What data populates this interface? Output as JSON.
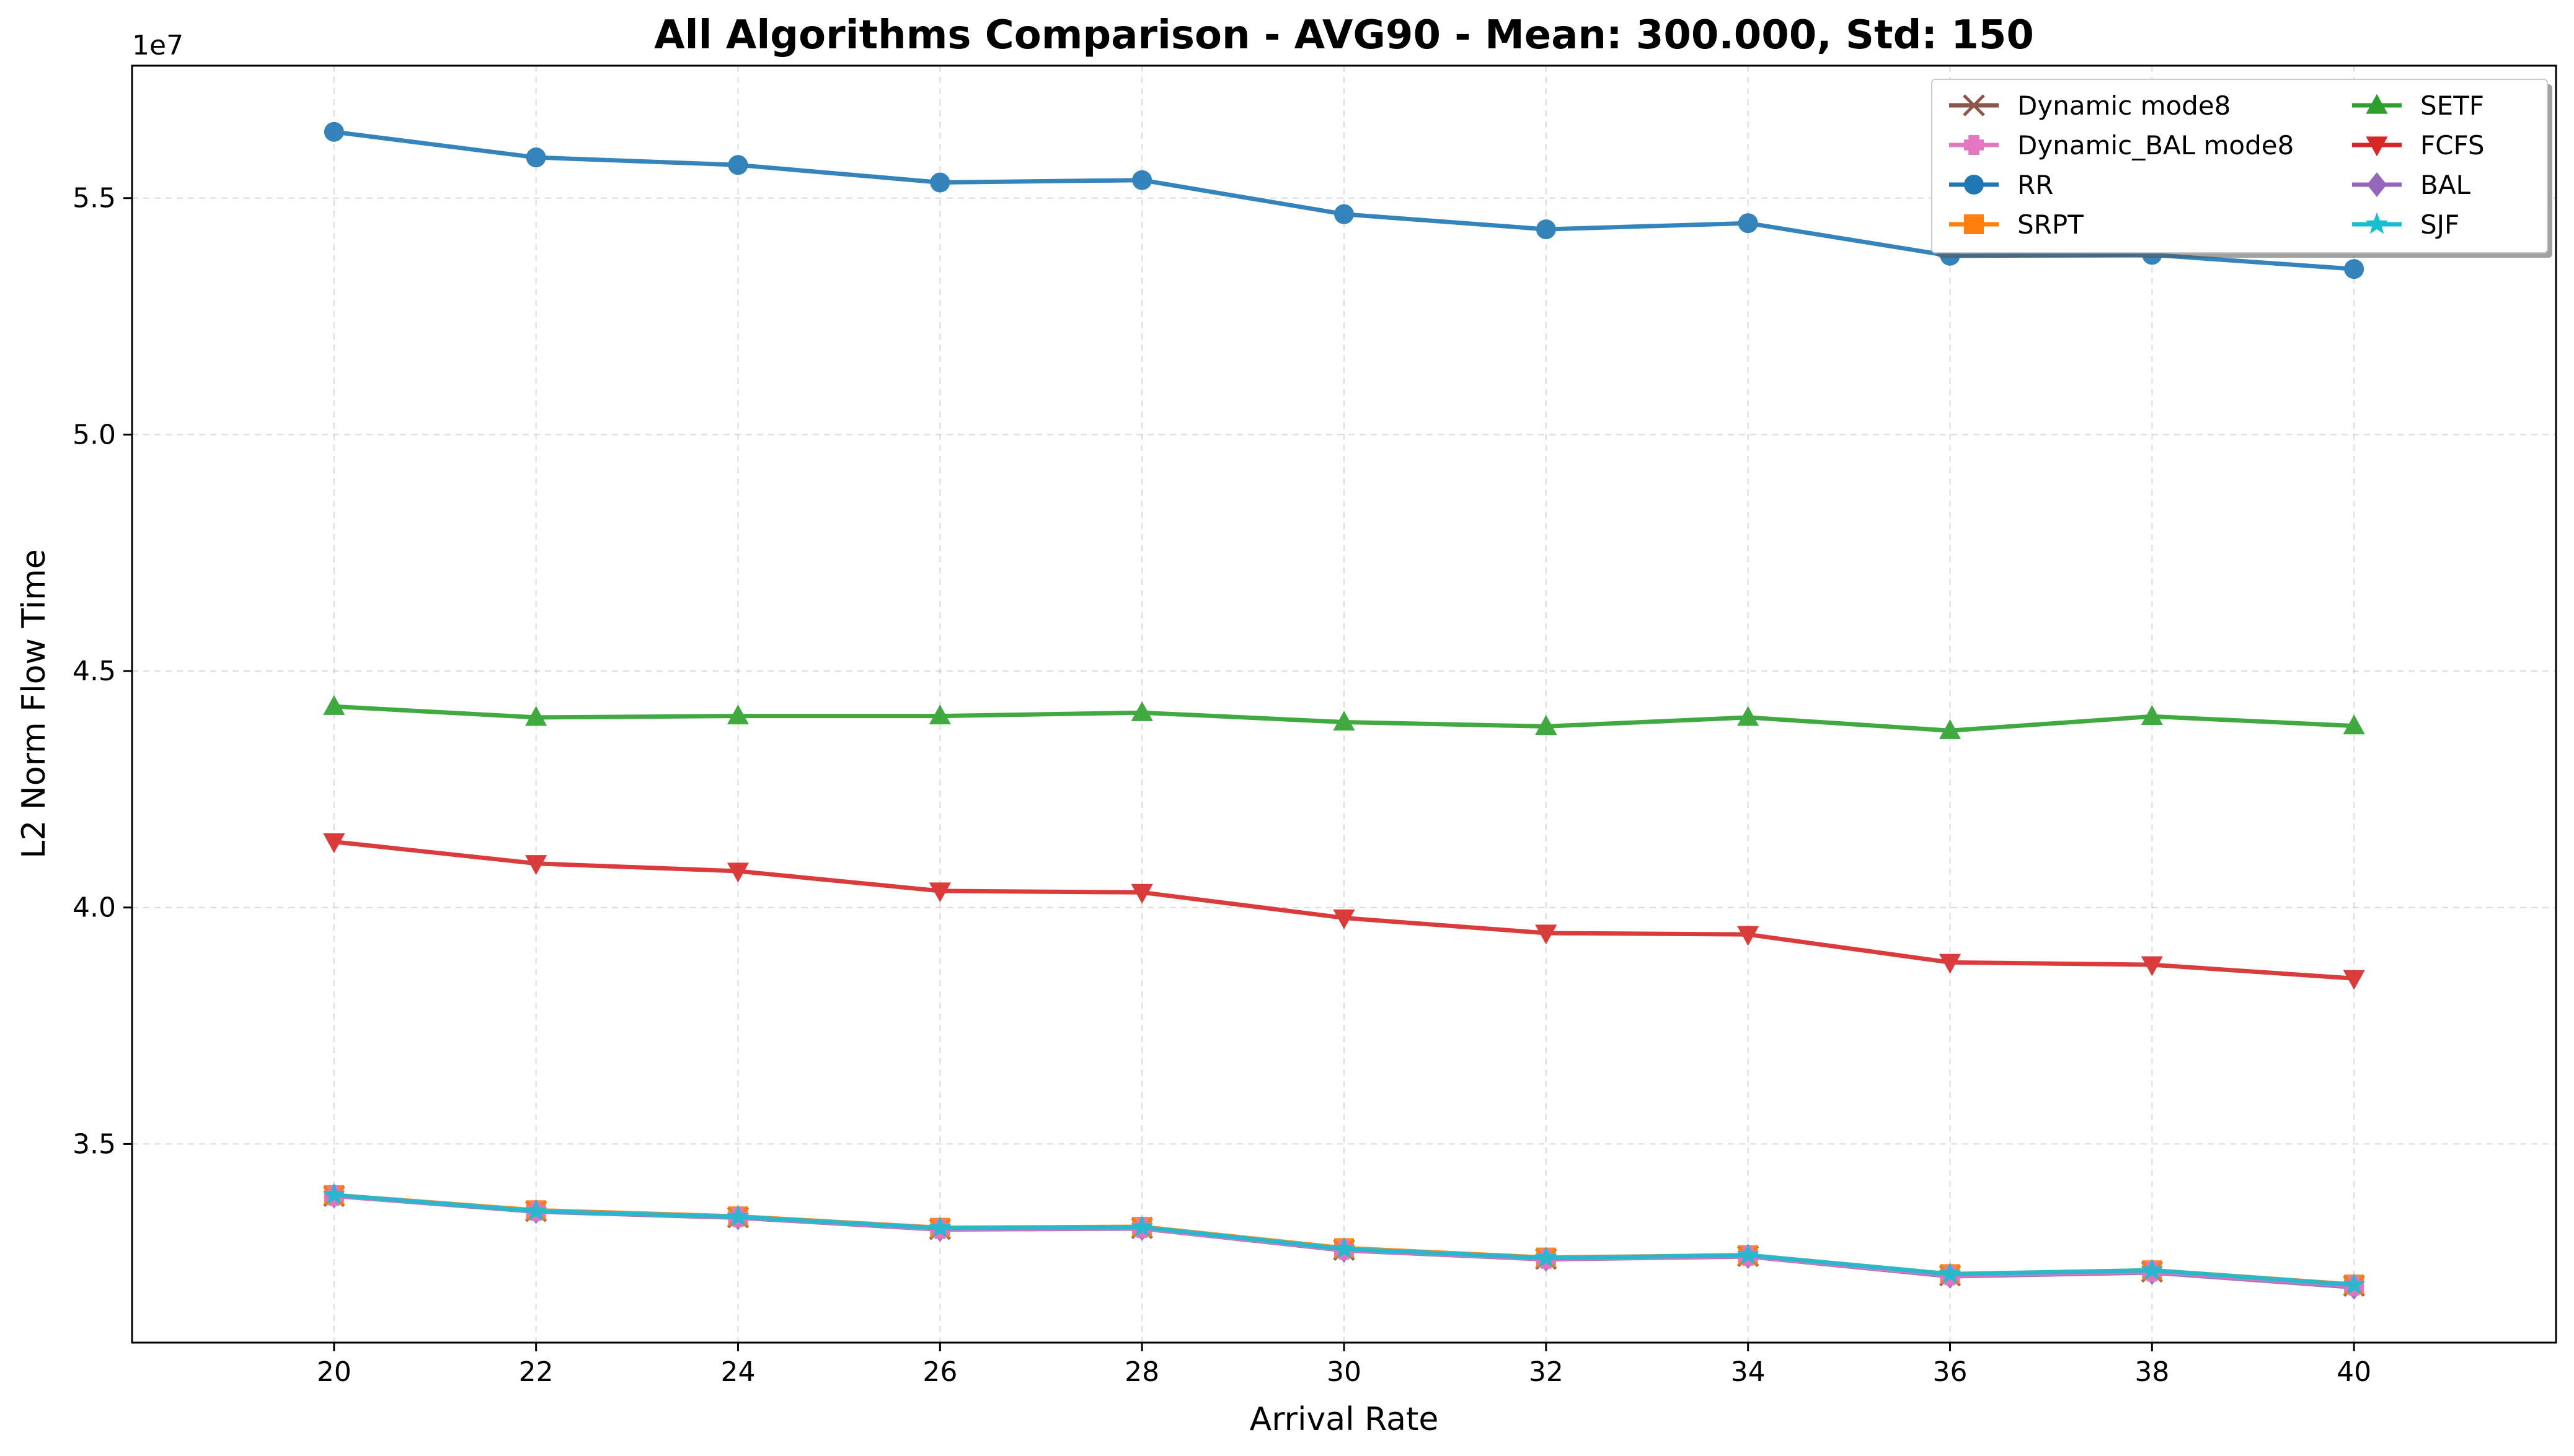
{
  "chart_data": {
    "type": "line",
    "title": "All Algorithms Comparison - AVG90 - Mean: 300.000, Std: 150",
    "xlabel": "Arrival Rate",
    "ylabel": "L2 Norm Flow Time",
    "y_scale_label": "1e7",
    "x": [
      20,
      22,
      24,
      26,
      28,
      30,
      32,
      34,
      36,
      38,
      40
    ],
    "x_ticks": [
      "20",
      "22",
      "24",
      "26",
      "28",
      "30",
      "32",
      "34",
      "36",
      "38",
      "40"
    ],
    "y_ticks": [
      "3.5",
      "4.0",
      "4.5",
      "5.0",
      "5.5"
    ],
    "y_tick_values": [
      3.5,
      4.0,
      4.5,
      5.0,
      5.5
    ],
    "xlim": [
      18,
      42
    ],
    "ylim": [
      3.08,
      5.78
    ],
    "grid": true,
    "legend_position": "top-right",
    "series": [
      {
        "name": "Dynamic mode8",
        "color": "#8c564b",
        "marker": "x",
        "values": [
          3.39,
          3.358,
          3.345,
          3.32,
          3.322,
          3.276,
          3.257,
          3.263,
          3.222,
          3.23,
          3.2
        ]
      },
      {
        "name": "Dynamic_BAL mode8",
        "color": "#e377c2",
        "marker": "plus",
        "values": [
          3.39,
          3.358,
          3.345,
          3.32,
          3.322,
          3.276,
          3.257,
          3.263,
          3.222,
          3.23,
          3.2
        ]
      },
      {
        "name": "RR",
        "color": "#1f77b4",
        "marker": "circle",
        "values": [
          5.64,
          5.586,
          5.57,
          5.533,
          5.538,
          5.466,
          5.434,
          5.447,
          5.378,
          5.38,
          5.35
        ]
      },
      {
        "name": "SRPT",
        "color": "#ff7f0e",
        "marker": "square",
        "values": [
          3.392,
          3.36,
          3.347,
          3.323,
          3.325,
          3.28,
          3.26,
          3.265,
          3.225,
          3.233,
          3.203
        ]
      },
      {
        "name": "SETF",
        "color": "#2ca02c",
        "marker": "triangle-up",
        "values": [
          4.425,
          4.402,
          4.405,
          4.405,
          4.412,
          4.392,
          4.383,
          4.402,
          4.374,
          4.404,
          4.384
        ]
      },
      {
        "name": "FCFS",
        "color": "#d62728",
        "marker": "triangle-down",
        "values": [
          4.139,
          4.093,
          4.077,
          4.035,
          4.032,
          3.978,
          3.946,
          3.943,
          3.884,
          3.879,
          3.85
        ]
      },
      {
        "name": "BAL",
        "color": "#9467bd",
        "marker": "diamond",
        "values": [
          3.39,
          3.357,
          3.344,
          3.319,
          3.321,
          3.275,
          3.256,
          3.262,
          3.22,
          3.228,
          3.197
        ]
      },
      {
        "name": "SJF",
        "color": "#17becf",
        "marker": "star",
        "values": [
          3.392,
          3.358,
          3.346,
          3.322,
          3.324,
          3.278,
          3.259,
          3.265,
          3.225,
          3.233,
          3.202
        ]
      }
    ]
  }
}
